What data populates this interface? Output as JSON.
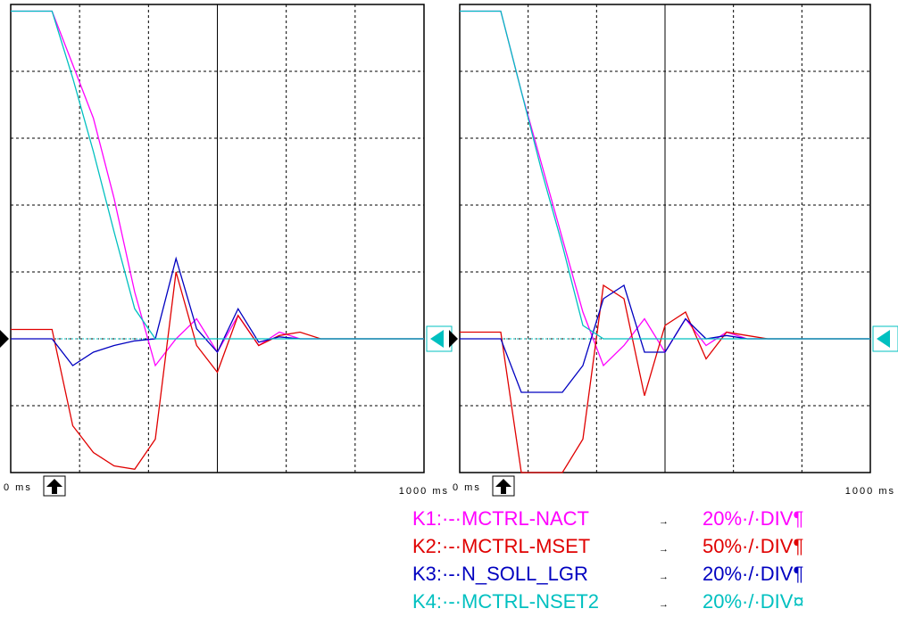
{
  "chart_data": [
    {
      "type": "line",
      "x": [
        0,
        50,
        100,
        150,
        200,
        250,
        300,
        350,
        400,
        450,
        500,
        550,
        600,
        650,
        700,
        750,
        800,
        850,
        900,
        950,
        1000
      ],
      "xlim": [
        0,
        1000
      ],
      "ylim": [
        -2,
        5
      ],
      "xticks": [
        {
          "value": 0,
          "label": "0 ms"
        },
        {
          "value": 1000,
          "label": "1000 ms"
        }
      ],
      "series": [
        {
          "color": "#ff00ff",
          "values": [
            4.9,
            4.9,
            4.9,
            4.1,
            3.3,
            2.1,
            0.7,
            -0.4,
            0,
            0.3,
            -0.2,
            0.35,
            -0.1,
            0.1,
            0,
            0,
            0,
            0,
            0,
            0,
            0
          ]
        },
        {
          "color": "#e00000",
          "values": [
            0.14,
            0.14,
            0.14,
            -1.3,
            -1.7,
            -1.9,
            -1.95,
            -1.5,
            1.0,
            -0.1,
            -0.5,
            0.35,
            -0.1,
            0.05,
            0.1,
            0,
            0,
            0,
            0,
            0,
            0
          ]
        },
        {
          "color": "#0000c0",
          "values": [
            0,
            0,
            0,
            -0.4,
            -0.2,
            -0.1,
            -0.03,
            0,
            1.2,
            0.15,
            -0.2,
            0.45,
            -0.05,
            0.03,
            0,
            0,
            0,
            0,
            0,
            0,
            0
          ]
        },
        {
          "color": "#00c0c0",
          "values": [
            4.9,
            4.9,
            4.9,
            3.9,
            2.8,
            1.6,
            0.45,
            0,
            0,
            0,
            0,
            0,
            0,
            0,
            0,
            0,
            0,
            0,
            0,
            0,
            0
          ]
        }
      ]
    },
    {
      "type": "line",
      "x": [
        0,
        50,
        100,
        150,
        200,
        250,
        300,
        350,
        400,
        450,
        500,
        550,
        600,
        650,
        700,
        750,
        800,
        850,
        900,
        950,
        1000
      ],
      "xlim": [
        0,
        1000
      ],
      "ylim": [
        -2,
        5
      ],
      "xticks": [
        {
          "value": 0,
          "label": "0 ms"
        },
        {
          "value": 1000,
          "label": "1000 ms"
        }
      ],
      "series": [
        {
          "color": "#ff00ff",
          "values": [
            4.9,
            4.9,
            4.9,
            3.7,
            2.6,
            1.5,
            0.4,
            -0.4,
            -0.1,
            0.3,
            -0.2,
            0.3,
            -0.1,
            0.1,
            0,
            0,
            0,
            0,
            0,
            0,
            0
          ]
        },
        {
          "color": "#e00000",
          "values": [
            0.1,
            0.1,
            0.1,
            -2,
            -2,
            -2,
            -1.5,
            0.8,
            0.6,
            -0.85,
            0.2,
            0.4,
            -0.3,
            0.1,
            0.05,
            0,
            0,
            0,
            0,
            0,
            0
          ]
        },
        {
          "color": "#0000c0",
          "values": [
            0,
            0,
            0,
            -0.8,
            -0.8,
            -0.8,
            -0.4,
            0.6,
            0.8,
            -0.2,
            -0.2,
            0.3,
            0,
            0.05,
            0,
            0,
            0,
            0,
            0,
            0,
            0
          ]
        },
        {
          "color": "#00c0c0",
          "values": [
            4.9,
            4.9,
            4.9,
            3.7,
            2.5,
            1.4,
            0.2,
            0,
            0,
            0,
            0,
            0,
            0,
            0,
            0,
            0,
            0,
            0,
            0,
            0,
            0
          ]
        }
      ]
    }
  ],
  "legend": [
    {
      "channel": "K1:·-·MCTRL-NACT",
      "arrow": "→",
      "scale": "20%·/·DIV¶",
      "color": "#ff00ff"
    },
    {
      "channel": "K2:·-·MCTRL-MSET",
      "arrow": "→",
      "scale": "50%·/·DIV¶",
      "color": "#e00000"
    },
    {
      "channel": "K3:·-·N_SOLL_LGR",
      "arrow": "→",
      "scale": "20%·/·DIV¶",
      "color": "#0000c0"
    },
    {
      "channel": "K4:·-·MCTRL-NSET2",
      "arrow": "→",
      "scale": "20%·/·DIV¤",
      "color": "#00c0c0"
    }
  ]
}
